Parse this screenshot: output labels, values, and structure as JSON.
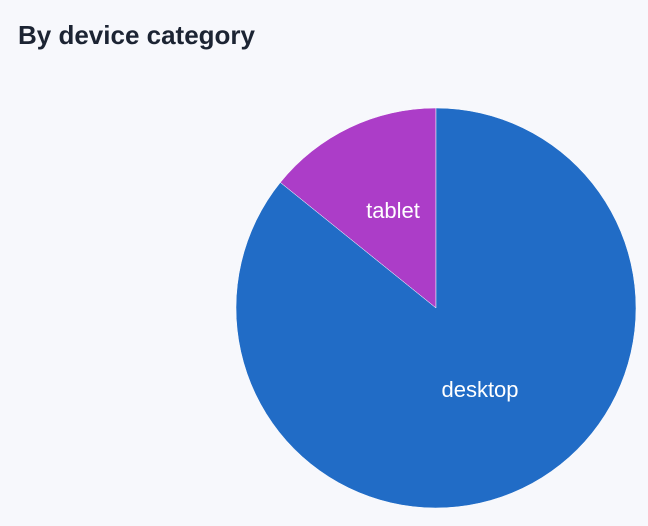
{
  "chart_data": {
    "type": "pie",
    "title": "By device category",
    "categories": [
      "tablet",
      "desktop"
    ],
    "values": [
      14.2,
      85.8
    ],
    "unit": "%",
    "colors": [
      "#ac3dc8",
      "#216cc6"
    ],
    "start_angle": "12 o'clock",
    "direction": "counter-clockwise for first slice",
    "legend": "none (inline labels)"
  }
}
